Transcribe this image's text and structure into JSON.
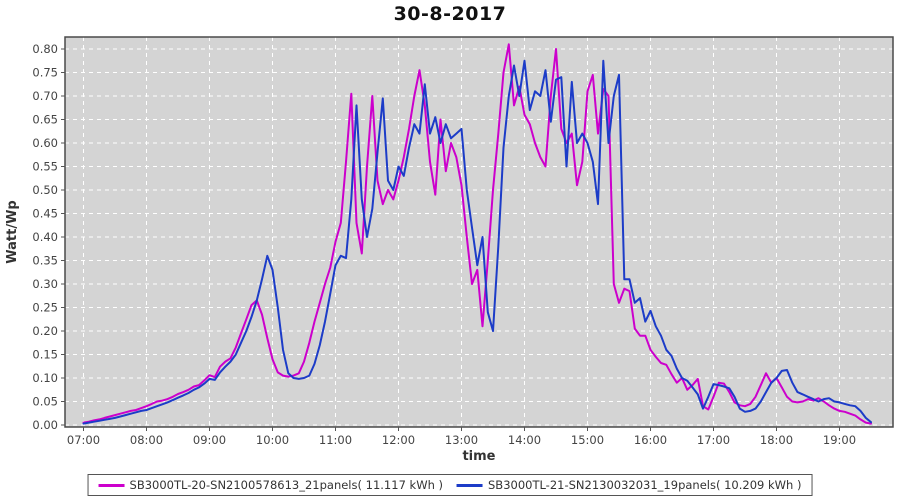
{
  "title": "30-8-2017",
  "axes": {
    "y_label": "Watt/Wp",
    "x_label": "time",
    "y_ticks": [
      0.0,
      0.05,
      0.1,
      0.15,
      0.2,
      0.25,
      0.3,
      0.35,
      0.4,
      0.45,
      0.5,
      0.55,
      0.6,
      0.65,
      0.7,
      0.75,
      0.8
    ],
    "x_ticks": [
      "07:00",
      "08:00",
      "09:00",
      "10:00",
      "11:00",
      "12:00",
      "13:00",
      "14:00",
      "15:00",
      "16:00",
      "17:00",
      "18:00",
      "19:00"
    ]
  },
  "legend": {
    "items": [
      {
        "label": "SB3000TL-20-SN2100578613_21panels( 11.117 kWh )",
        "color": "#cc00cc"
      },
      {
        "label": "SB3000TL-21-SN2130032031_19panels( 10.209 kWh )",
        "color": "#1c3cc8"
      }
    ]
  },
  "chart_data": {
    "type": "line",
    "title": "30-8-2017",
    "xlabel": "time",
    "ylabel": "Watt/Wp",
    "ylim": [
      0.0,
      0.8
    ],
    "xlim": [
      "07:00",
      "19:50"
    ],
    "grid": true,
    "grid_style": "white-dashed",
    "plot_bg": "#d4d4d4",
    "legend_position": "bottom",
    "x": [
      "07:00",
      "07:05",
      "07:10",
      "07:15",
      "07:20",
      "07:25",
      "07:30",
      "07:35",
      "07:40",
      "07:45",
      "07:50",
      "07:55",
      "08:00",
      "08:05",
      "08:10",
      "08:15",
      "08:20",
      "08:25",
      "08:30",
      "08:35",
      "08:40",
      "08:45",
      "08:50",
      "08:55",
      "09:00",
      "09:05",
      "09:10",
      "09:15",
      "09:20",
      "09:25",
      "09:30",
      "09:35",
      "09:40",
      "09:45",
      "09:50",
      "09:55",
      "10:00",
      "10:05",
      "10:10",
      "10:15",
      "10:20",
      "10:25",
      "10:30",
      "10:35",
      "10:40",
      "10:45",
      "10:50",
      "10:55",
      "11:00",
      "11:05",
      "11:10",
      "11:15",
      "11:20",
      "11:25",
      "11:30",
      "11:35",
      "11:40",
      "11:45",
      "11:50",
      "11:55",
      "12:00",
      "12:05",
      "12:10",
      "12:15",
      "12:20",
      "12:25",
      "12:30",
      "12:35",
      "12:40",
      "12:45",
      "12:50",
      "12:55",
      "13:00",
      "13:05",
      "13:10",
      "13:15",
      "13:20",
      "13:25",
      "13:30",
      "13:35",
      "13:40",
      "13:45",
      "13:50",
      "13:55",
      "14:00",
      "14:05",
      "14:10",
      "14:15",
      "14:20",
      "14:25",
      "14:30",
      "14:35",
      "14:40",
      "14:45",
      "14:50",
      "14:55",
      "15:00",
      "15:05",
      "15:10",
      "15:15",
      "15:20",
      "15:25",
      "15:30",
      "15:35",
      "15:40",
      "15:45",
      "15:50",
      "15:55",
      "16:00",
      "16:05",
      "16:10",
      "16:15",
      "16:20",
      "16:25",
      "16:30",
      "16:35",
      "16:40",
      "16:45",
      "16:50",
      "16:55",
      "17:00",
      "17:05",
      "17:10",
      "17:15",
      "17:20",
      "17:25",
      "17:30",
      "17:35",
      "17:40",
      "17:45",
      "17:50",
      "17:55",
      "18:00",
      "18:05",
      "18:10",
      "18:15",
      "18:20",
      "18:25",
      "18:30",
      "18:35",
      "18:40",
      "18:45",
      "18:50",
      "18:55",
      "19:00",
      "19:05",
      "19:10",
      "19:15",
      "19:20",
      "19:25",
      "19:30"
    ],
    "series": [
      {
        "name": "SB3000TL-20-SN2100578613_21panels( 11.117 kWh )",
        "color": "#cc00cc",
        "values": [
          0.005,
          0.007,
          0.01,
          0.012,
          0.015,
          0.018,
          0.021,
          0.024,
          0.027,
          0.03,
          0.032,
          0.036,
          0.04,
          0.045,
          0.05,
          0.052,
          0.055,
          0.06,
          0.066,
          0.07,
          0.075,
          0.082,
          0.085,
          0.095,
          0.106,
          0.102,
          0.124,
          0.135,
          0.142,
          0.165,
          0.195,
          0.225,
          0.255,
          0.265,
          0.235,
          0.185,
          0.14,
          0.112,
          0.105,
          0.103,
          0.105,
          0.11,
          0.135,
          0.175,
          0.22,
          0.26,
          0.3,
          0.335,
          0.39,
          0.43,
          0.56,
          0.705,
          0.43,
          0.365,
          0.55,
          0.7,
          0.52,
          0.47,
          0.5,
          0.48,
          0.52,
          0.57,
          0.63,
          0.7,
          0.755,
          0.68,
          0.56,
          0.49,
          0.65,
          0.54,
          0.6,
          0.57,
          0.51,
          0.4,
          0.3,
          0.33,
          0.21,
          0.35,
          0.5,
          0.62,
          0.75,
          0.81,
          0.68,
          0.72,
          0.66,
          0.64,
          0.6,
          0.57,
          0.55,
          0.7,
          0.8,
          0.63,
          0.6,
          0.62,
          0.51,
          0.56,
          0.71,
          0.745,
          0.62,
          0.715,
          0.7,
          0.3,
          0.26,
          0.29,
          0.285,
          0.205,
          0.19,
          0.19,
          0.16,
          0.145,
          0.132,
          0.128,
          0.108,
          0.09,
          0.1,
          0.075,
          0.085,
          0.098,
          0.04,
          0.033,
          0.06,
          0.09,
          0.088,
          0.07,
          0.048,
          0.042,
          0.04,
          0.045,
          0.06,
          0.085,
          0.11,
          0.09,
          0.1,
          0.08,
          0.06,
          0.05,
          0.048,
          0.05,
          0.055,
          0.052,
          0.057,
          0.05,
          0.042,
          0.035,
          0.03,
          0.028,
          0.024,
          0.02,
          0.012,
          0.005,
          0.003
        ]
      },
      {
        "name": "SB3000TL-21-SN2130032031_19panels( 10.209 kWh )",
        "color": "#1c3cc8",
        "values": [
          0.003,
          0.005,
          0.007,
          0.009,
          0.011,
          0.013,
          0.015,
          0.018,
          0.021,
          0.024,
          0.027,
          0.03,
          0.032,
          0.036,
          0.04,
          0.044,
          0.048,
          0.053,
          0.058,
          0.063,
          0.068,
          0.075,
          0.08,
          0.088,
          0.098,
          0.096,
          0.112,
          0.124,
          0.135,
          0.15,
          0.175,
          0.2,
          0.23,
          0.265,
          0.31,
          0.36,
          0.33,
          0.25,
          0.16,
          0.11,
          0.1,
          0.098,
          0.1,
          0.105,
          0.13,
          0.17,
          0.22,
          0.28,
          0.34,
          0.36,
          0.355,
          0.48,
          0.68,
          0.48,
          0.4,
          0.46,
          0.58,
          0.695,
          0.52,
          0.5,
          0.55,
          0.53,
          0.59,
          0.64,
          0.62,
          0.725,
          0.62,
          0.655,
          0.6,
          0.64,
          0.61,
          0.62,
          0.63,
          0.5,
          0.42,
          0.34,
          0.4,
          0.24,
          0.2,
          0.38,
          0.59,
          0.7,
          0.765,
          0.7,
          0.775,
          0.67,
          0.71,
          0.7,
          0.755,
          0.645,
          0.735,
          0.74,
          0.55,
          0.73,
          0.6,
          0.62,
          0.6,
          0.56,
          0.47,
          0.775,
          0.6,
          0.7,
          0.745,
          0.31,
          0.31,
          0.26,
          0.27,
          0.22,
          0.243,
          0.21,
          0.19,
          0.16,
          0.147,
          0.12,
          0.1,
          0.094,
          0.08,
          0.065,
          0.035,
          0.06,
          0.087,
          0.085,
          0.082,
          0.078,
          0.06,
          0.035,
          0.028,
          0.03,
          0.035,
          0.05,
          0.07,
          0.09,
          0.1,
          0.115,
          0.117,
          0.09,
          0.07,
          0.065,
          0.06,
          0.055,
          0.05,
          0.055,
          0.057,
          0.05,
          0.048,
          0.045,
          0.042,
          0.04,
          0.03,
          0.015,
          0.006
        ]
      }
    ]
  }
}
